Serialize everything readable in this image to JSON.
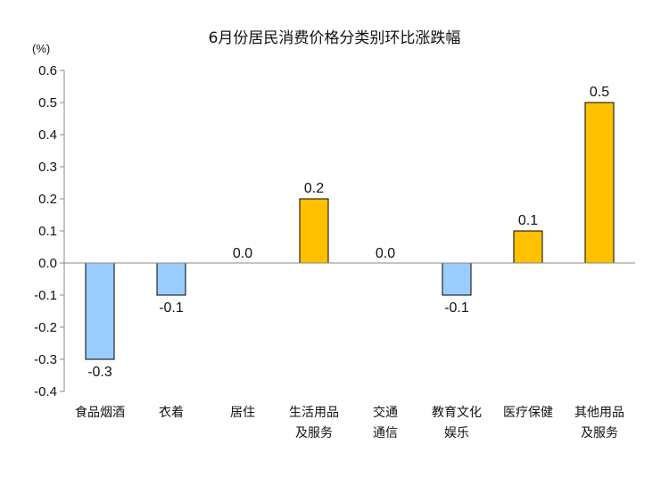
{
  "chart_data": {
    "type": "bar",
    "title": "6月份居民消费价格分类别环比涨跌幅",
    "unit_label": "(%)",
    "categories": [
      [
        "食品烟酒"
      ],
      [
        "衣着"
      ],
      [
        "居住"
      ],
      [
        "生活用品",
        "及服务"
      ],
      [
        "交通",
        "通信"
      ],
      [
        "教育文化",
        "娱乐"
      ],
      [
        "医疗保健"
      ],
      [
        "其他用品",
        "及服务"
      ]
    ],
    "values": [
      -0.3,
      -0.1,
      0.0,
      0.2,
      0.0,
      -0.1,
      0.1,
      0.5
    ],
    "data_labels": [
      "-0.3",
      "-0.1",
      "0.0",
      "0.2",
      "0.0",
      "-0.1",
      "0.1",
      "0.5"
    ],
    "ylim": [
      -0.4,
      0.6
    ],
    "yticks": [
      0.6,
      0.5,
      0.4,
      0.3,
      0.2,
      0.1,
      0.0,
      -0.1,
      -0.2,
      -0.3,
      -0.4
    ],
    "ytick_labels": [
      "0.6",
      "0.5",
      "0.4",
      "0.3",
      "0.2",
      "0.1",
      "0.0",
      "-0.1",
      "-0.2",
      "-0.3",
      "-0.4"
    ],
    "grid": false,
    "legend": "none",
    "colors": {
      "positive": "#FFC000",
      "negative": "#99CCFF",
      "bar_stroke": "#000000",
      "axis": "#888888"
    }
  }
}
